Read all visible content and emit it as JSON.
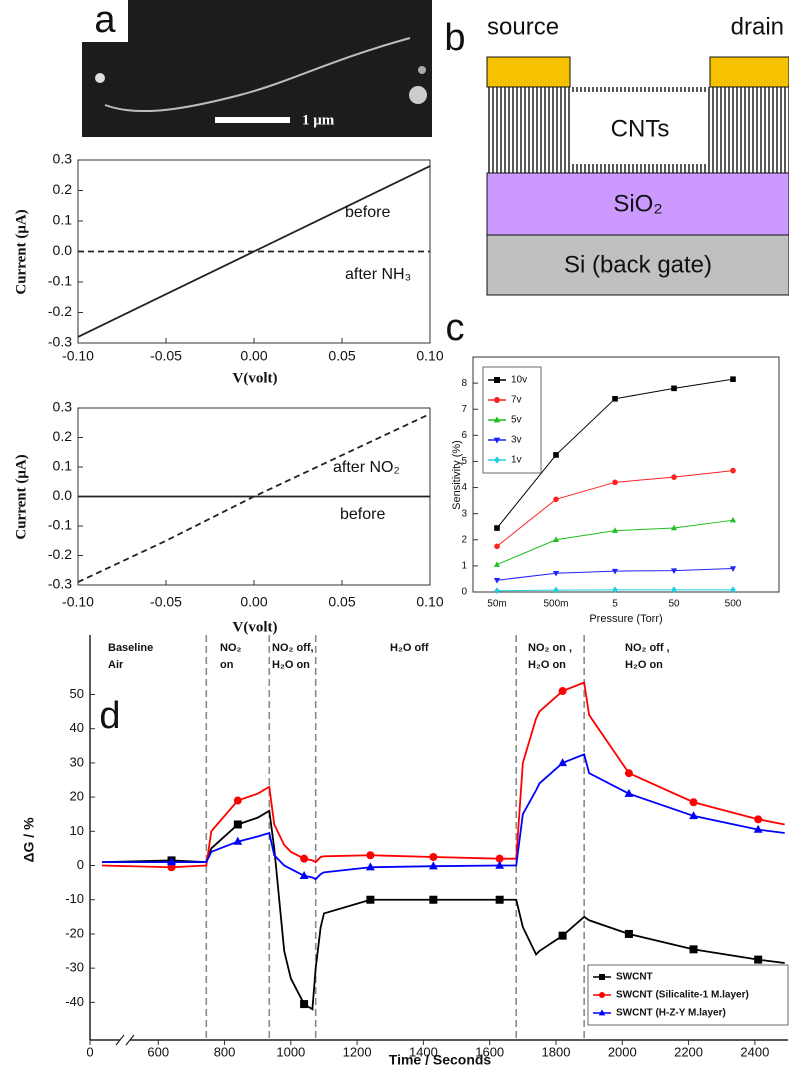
{
  "panel_labels": [
    "a",
    "b",
    "c",
    "d"
  ],
  "afm_image": {
    "scale_label": "1 μm"
  },
  "schematic": {
    "source": "source",
    "drain": "drain",
    "channel": "CNTs",
    "oxide": "SiO₂",
    "gate": "Si (back gate)"
  },
  "chart_data": [
    {
      "type": "line",
      "x": [
        -0.1,
        -0.05,
        0,
        0.05,
        0.1
      ],
      "series": [
        {
          "name": "before",
          "color": "#222222",
          "line_style": "solid",
          "values": [
            -0.28,
            -0.14,
            0,
            0.14,
            0.28
          ]
        },
        {
          "name": "after NH₃",
          "color": "#222222",
          "line_style": "dashed",
          "values": [
            0,
            0,
            0,
            0,
            0
          ]
        }
      ],
      "xlim": [
        -0.1,
        0.1
      ],
      "ylim": [
        -0.3,
        0.3
      ],
      "xticks": [
        {
          "value": -0.1,
          "label": "-0.10"
        },
        -0.05,
        {
          "value": 0,
          "label": "0.00"
        },
        0.05,
        {
          "value": 0.1,
          "label": "0.10"
        }
      ],
      "yticks": [
        -0.3,
        -0.2,
        -0.1,
        {
          "value": 0,
          "label": "0.0"
        },
        0.1,
        0.2,
        0.3
      ],
      "xlabel": "V(volt)",
      "ylabel": "Current (μA)"
    },
    {
      "type": "line",
      "x": [
        -0.1,
        -0.05,
        0,
        0.05,
        0.1
      ],
      "series": [
        {
          "name": "after NO₂",
          "color": "#222222",
          "line_style": "dashed",
          "values": [
            -0.29,
            -0.15,
            0,
            0.14,
            0.28
          ]
        },
        {
          "name": "before",
          "color": "#222222",
          "line_style": "solid",
          "values": [
            0,
            0,
            0,
            0,
            0
          ]
        }
      ],
      "xlim": [
        -0.1,
        0.1
      ],
      "ylim": [
        -0.3,
        0.3
      ],
      "xticks": [
        {
          "value": -0.1,
          "label": "-0.10"
        },
        -0.05,
        {
          "value": 0,
          "label": "0.00"
        },
        0.05,
        {
          "value": 0.1,
          "label": "0.10"
        }
      ],
      "yticks": [
        -0.3,
        -0.2,
        -0.1,
        {
          "value": 0,
          "label": "0.0"
        },
        0.1,
        0.2,
        0.3
      ],
      "xlabel": "V(volt)",
      "ylabel": "Current (μA)"
    },
    {
      "type": "line",
      "categories": [
        "50m",
        "500m",
        "5",
        "50",
        "500"
      ],
      "series": [
        {
          "name": "10v",
          "color": "#000000",
          "marker": "square",
          "values": [
            2.45,
            5.25,
            7.4,
            7.8,
            8.15
          ]
        },
        {
          "name": "7v",
          "color": "#ff2020",
          "marker": "circle",
          "values": [
            1.75,
            3.55,
            4.2,
            4.4,
            4.65
          ]
        },
        {
          "name": "5v",
          "color": "#20c020",
          "marker": "triangle",
          "values": [
            1.05,
            2.0,
            2.35,
            2.45,
            2.75
          ]
        },
        {
          "name": "3v",
          "color": "#2020ff",
          "marker": "triangle-down",
          "values": [
            0.45,
            0.72,
            0.8,
            0.82,
            0.9
          ]
        },
        {
          "name": "1v",
          "color": "#20d0e0",
          "marker": "diamond",
          "values": [
            0.05,
            0.07,
            0.08,
            0.08,
            0.08
          ]
        }
      ],
      "ylim": [
        0,
        9
      ],
      "yticks": [
        0,
        1,
        2,
        3,
        4,
        5,
        6,
        7,
        8
      ],
      "xlabel": "Pressure (Torr)",
      "ylabel": "Sensitivity (%)",
      "legend": "upper left"
    },
    {
      "type": "line",
      "x": [
        60,
        640,
        745,
        760,
        840,
        900,
        935,
        950,
        980,
        1000,
        1040,
        1065,
        1075,
        1090,
        1100,
        1240,
        1430,
        1630,
        1680,
        1700,
        1740,
        1750,
        1820,
        1885,
        1900,
        2020,
        2215,
        2410,
        2490
      ],
      "series": [
        {
          "name": "SWCNT",
          "color": "#000000",
          "marker": "square",
          "values": [
            1,
            1.5,
            1,
            5,
            12,
            14,
            16,
            5,
            -25,
            -33,
            -40.5,
            -42,
            -30,
            -18,
            -14,
            -10,
            -10,
            -10,
            -10,
            -18,
            -26,
            -25,
            -20.5,
            -15,
            -16,
            -20,
            -24.5,
            -27.5,
            -28.5
          ]
        },
        {
          "name": "SWCNT (Silicalite-1 M.layer)",
          "color": "#ff0000",
          "marker": "circle",
          "values": [
            0,
            -0.5,
            0,
            10,
            19,
            21,
            23,
            12,
            6,
            4,
            2,
            1.5,
            1,
            2.5,
            2.7,
            3,
            2.5,
            2,
            2,
            30,
            43,
            45,
            51,
            53.5,
            44,
            27,
            18.5,
            13.5,
            12
          ]
        },
        {
          "name": "SWCNT (H-Z-Y M.layer)",
          "color": "#0000ff",
          "marker": "triangle",
          "values": [
            1,
            1,
            1,
            4,
            7,
            8.5,
            9.5,
            3,
            0,
            -1,
            -3,
            -3.5,
            -4,
            -2.5,
            -2,
            -0.5,
            -0.2,
            0,
            0,
            15,
            22,
            24,
            30,
            32.5,
            27,
            21,
            14.5,
            10.5,
            9.5
          ]
        }
      ],
      "markers_at": [
        640,
        840,
        1040,
        1240,
        1430,
        1630,
        1820,
        2020,
        2215,
        2410
      ],
      "xlim": [
        0,
        2500
      ],
      "x_break": [
        100,
        560
      ],
      "ylim": [
        -51,
        63
      ],
      "xticks": [
        0,
        600,
        800,
        1000,
        1200,
        1400,
        1600,
        1800,
        2000,
        2200,
        2400
      ],
      "yticks": [
        -40,
        -30,
        -20,
        -10,
        0,
        10,
        20,
        30,
        40,
        50
      ],
      "vlines": [
        745,
        935,
        1075,
        1680,
        1885
      ],
      "phase_labels": [
        [
          "Baseline",
          "Air"
        ],
        [
          "NO₂",
          "on"
        ],
        [
          "NO₂ off,",
          "H₂O on"
        ],
        [
          "H₂O off"
        ],
        [
          "NO₂ on ,",
          "H₂O on"
        ],
        [
          "NO₂ off ,",
          "H₂O on"
        ]
      ],
      "xlabel": "Time / Seconds",
      "ylabel": "ΔG / %",
      "legend": "lower right"
    }
  ]
}
